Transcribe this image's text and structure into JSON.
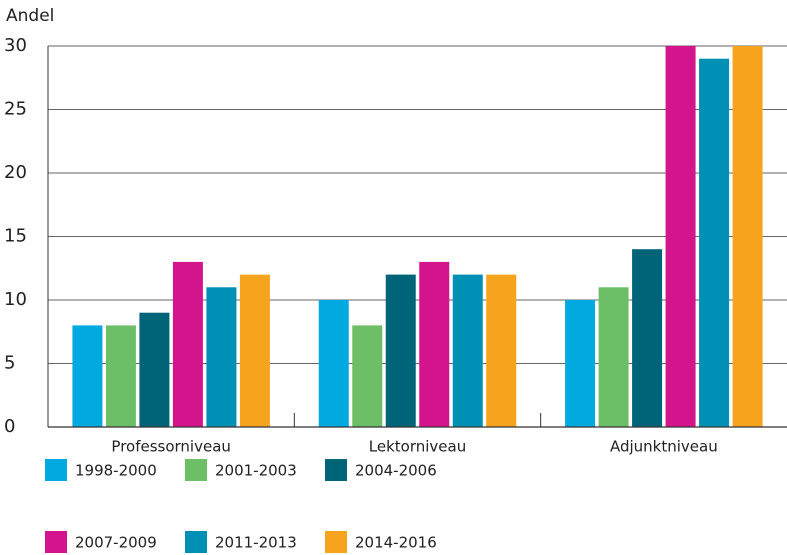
{
  "chart_data": {
    "type": "bar",
    "y_label": "Andel",
    "categories": [
      "Professorniveau",
      "Lektorniveau",
      "Adjunktniveau"
    ],
    "series": [
      {
        "name": "1998-2000",
        "color": "#00a9e0",
        "values": [
          8,
          10,
          10
        ]
      },
      {
        "name": "2001-2003",
        "color": "#6dbf67",
        "values": [
          8,
          8,
          11
        ]
      },
      {
        "name": "2004-2006",
        "color": "#006478",
        "values": [
          9,
          12,
          14
        ]
      },
      {
        "name": "2007-2009",
        "color": "#d4148c",
        "values": [
          13,
          13,
          30
        ]
      },
      {
        "name": "2011-2013",
        "color": "#0090b5",
        "values": [
          11,
          12,
          29
        ]
      },
      {
        "name": "2014-2016",
        "color": "#f6a31e",
        "values": [
          12,
          12,
          30
        ]
      }
    ],
    "ylim": [
      0,
      30
    ],
    "yticks": [
      0,
      5,
      10,
      15,
      20,
      25,
      30
    ],
    "grid": true
  }
}
